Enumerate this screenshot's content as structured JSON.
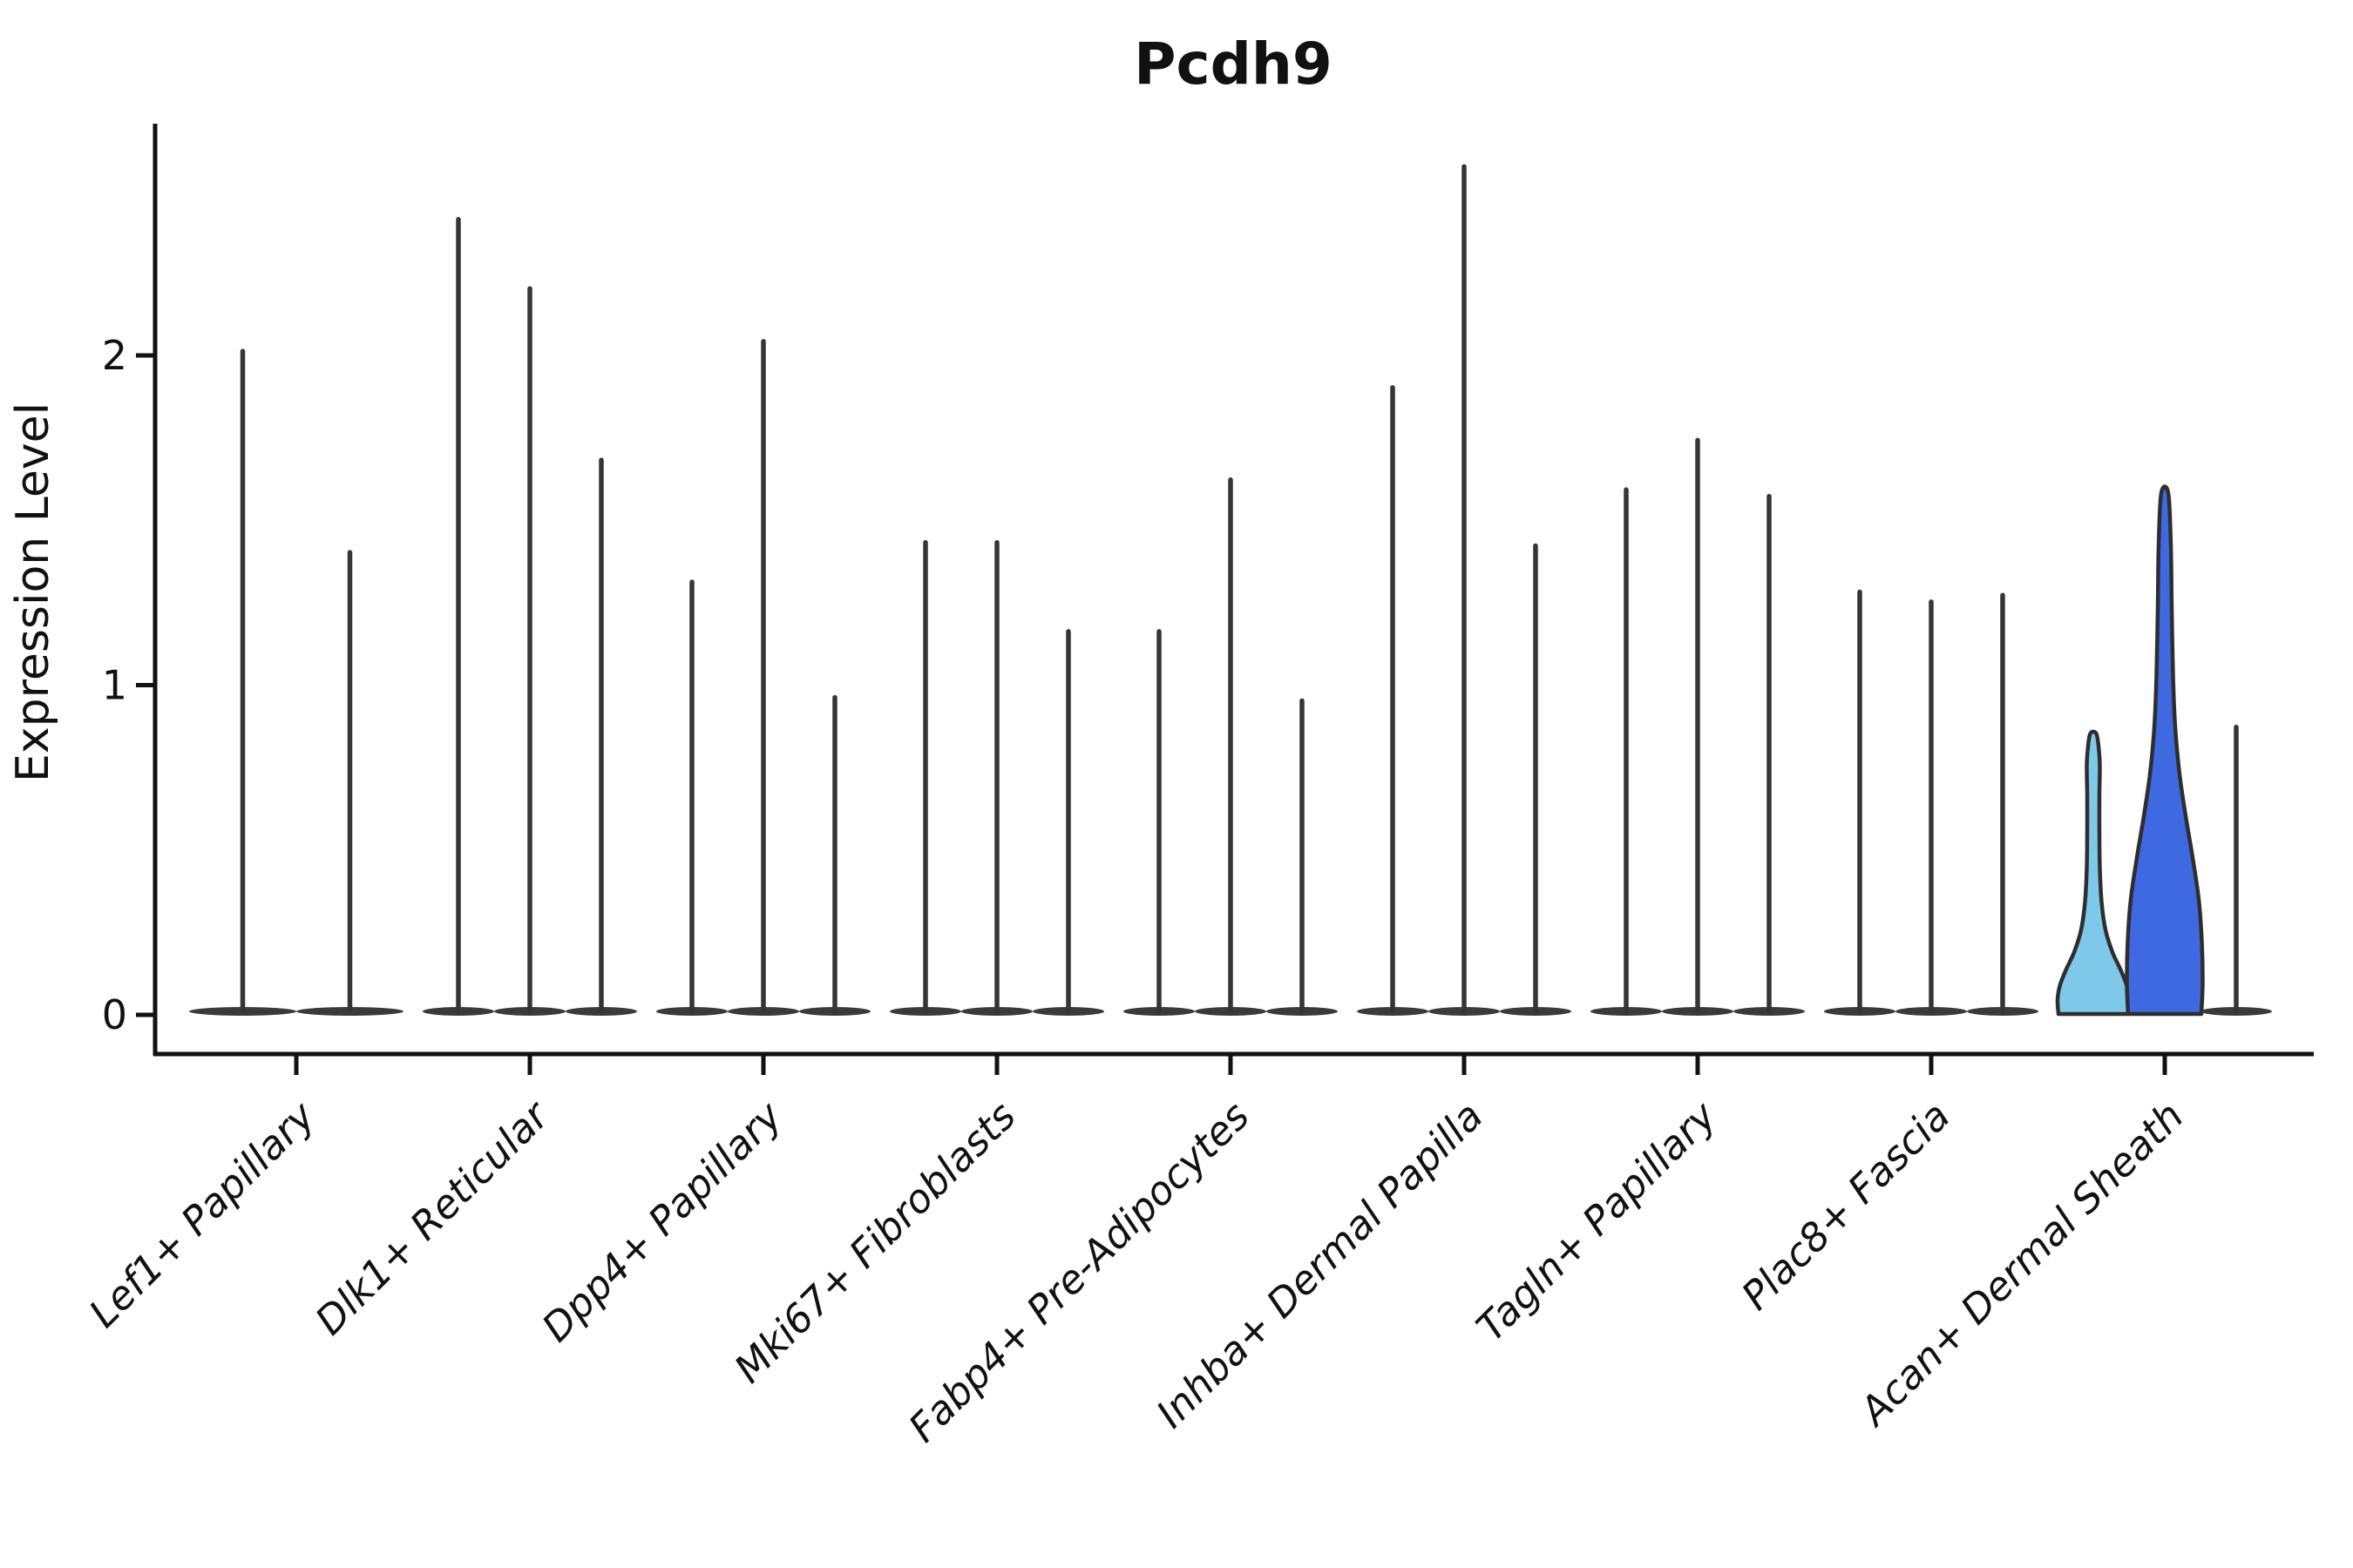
{
  "title": "Pcdh9",
  "colors": {
    "spike": "#353535",
    "base_blob": "#3a3a3a",
    "outline": "#2e2e2e",
    "axis": "#111111",
    "light_blue": "#7ec8ea",
    "royal_blue": "#3f69e1",
    "background": "#ffffff"
  },
  "chart_data": {
    "type": "violin",
    "title": "Pcdh9",
    "xlabel": "",
    "ylabel": "Expression Level",
    "ylim": [
      -0.12,
      2.72
    ],
    "yticks": [
      0,
      1,
      2
    ],
    "grid": false,
    "legend": "none",
    "note": "Each group shows per-sample violins; most are near-zero flat bases with a thin max-expression spike. Last group has two filled flask-shaped violins.",
    "groups": [
      {
        "label": "Lef1+ Papillary",
        "violins": [
          {
            "max": 2.02
          },
          {
            "max": 1.41
          }
        ]
      },
      {
        "label": "Dlk1+ Reticular",
        "violins": [
          {
            "max": 2.42
          },
          {
            "max": 2.21
          },
          {
            "max": 1.69
          }
        ]
      },
      {
        "label": "Dpp4+ Papillary",
        "violins": [
          {
            "max": 1.32
          },
          {
            "max": 2.05
          },
          {
            "max": 0.97
          }
        ]
      },
      {
        "label": "Mki67+ Fibroblasts",
        "violins": [
          {
            "max": 1.44
          },
          {
            "max": 1.44
          },
          {
            "max": 1.17
          }
        ]
      },
      {
        "label": "Fabp4+ Pre-Adipocytes",
        "violins": [
          {
            "max": 1.17
          },
          {
            "max": 1.63
          },
          {
            "max": 0.96
          }
        ]
      },
      {
        "label": "Inhba+ Dermal Papilla",
        "violins": [
          {
            "max": 1.91
          },
          {
            "max": 2.58
          },
          {
            "max": 1.43
          }
        ]
      },
      {
        "label": "Tagln+ Papillary",
        "violins": [
          {
            "max": 1.6
          },
          {
            "max": 1.75
          },
          {
            "max": 1.58
          }
        ]
      },
      {
        "label": "Plac8+ Fascia",
        "violins": [
          {
            "max": 1.29
          },
          {
            "max": 1.26
          },
          {
            "max": 1.28
          }
        ]
      },
      {
        "label": "Acan+ Dermal Sheath",
        "violins": [
          {
            "max": 0.85,
            "shape": "flask",
            "fill": "#7ec8ea",
            "profile": [
              [
                0,
                40
              ],
              [
                0.05,
                41
              ],
              [
                0.1,
                38.5
              ],
              [
                0.16,
                31
              ],
              [
                0.22,
                22
              ],
              [
                0.3,
                14
              ],
              [
                0.4,
                9.5
              ],
              [
                0.52,
                7.5
              ],
              [
                0.65,
                7
              ],
              [
                0.78,
                7
              ],
              [
                0.88,
                7.5
              ],
              [
                0.94,
                6.5
              ],
              [
                1,
                3.5
              ]
            ]
          },
          {
            "max": 1.58,
            "shape": "flask",
            "fill": "#3f69e1",
            "profile": [
              [
                0,
                42
              ],
              [
                0.06,
                43.5
              ],
              [
                0.14,
                42.5
              ],
              [
                0.22,
                39
              ],
              [
                0.3,
                32
              ],
              [
                0.38,
                24
              ],
              [
                0.46,
                17
              ],
              [
                0.55,
                12
              ],
              [
                0.65,
                9.5
              ],
              [
                0.78,
                8
              ],
              [
                0.9,
                7
              ],
              [
                1,
                4
              ]
            ]
          },
          {
            "max": 0.88
          }
        ]
      }
    ]
  }
}
